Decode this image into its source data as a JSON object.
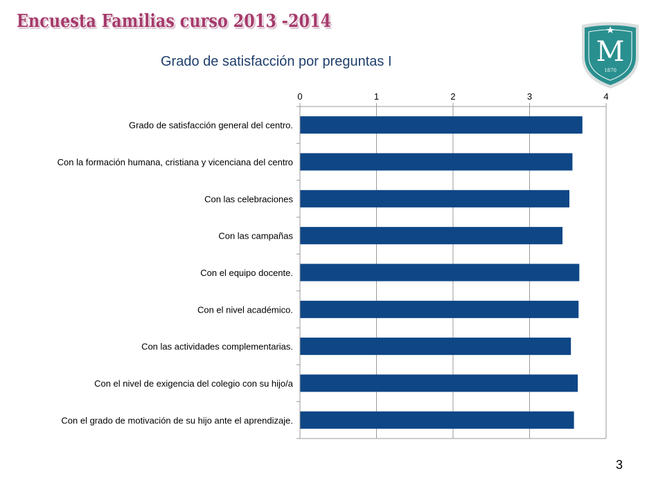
{
  "slide": {
    "title": "Encuesta Familias curso 2013 -2014",
    "page_number": "3"
  },
  "logo": {
    "letter": "M",
    "year": "1870",
    "color": "#2a8f8f"
  },
  "chart_data": {
    "type": "bar",
    "orientation": "horizontal",
    "title": "Grado de satisfacción por preguntas I",
    "xlabel": "",
    "ylabel": "",
    "xlim": [
      0,
      4
    ],
    "x_ticks": [
      "0",
      "1",
      "2",
      "3",
      "4"
    ],
    "categories": [
      "Grado de satisfacción general del centro.",
      "Con la formación humana, cristiana y vicenciana del centro",
      "Con las celebraciones",
      "Con las campañas",
      "Con el equipo docente.",
      "Con el nivel académico.",
      "Con las actividades complementarias.",
      "Con el nivel de exigencia del colegio con su hijo/a",
      "Con el grado de motivación de su hijo ante el aprendizaje."
    ],
    "values": [
      3.69,
      3.56,
      3.52,
      3.43,
      3.65,
      3.64,
      3.54,
      3.63,
      3.58
    ],
    "bar_color": "#0e4686",
    "grid": true,
    "legend": "none"
  }
}
